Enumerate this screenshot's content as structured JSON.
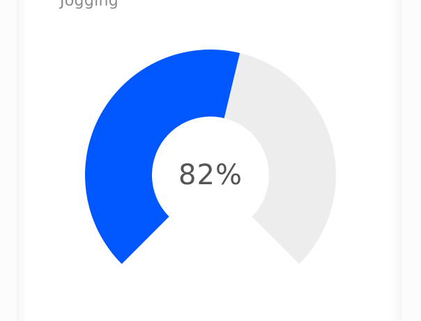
{
  "card": {
    "title": "Jogging"
  },
  "gauge": {
    "percent": 82,
    "display_value": "82%",
    "fill_fraction": 0.55,
    "colors": {
      "fill": "#0057ff",
      "track": "#ededed",
      "background": "#ffffff"
    }
  }
}
